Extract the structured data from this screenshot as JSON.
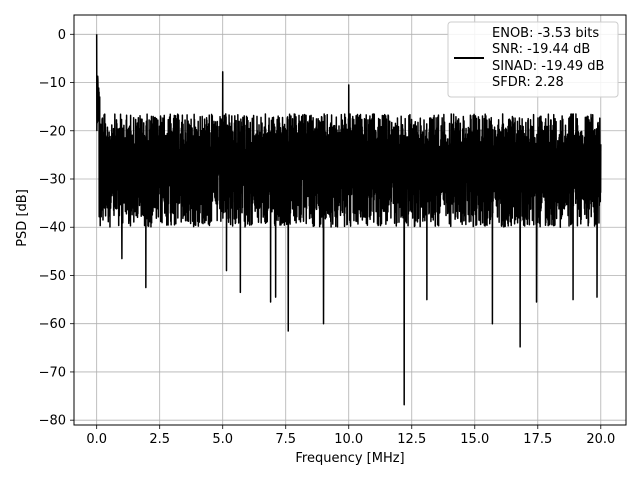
{
  "chart_data": {
    "type": "line",
    "xlabel": "Frequency [MHz]",
    "ylabel": "PSD [dB]",
    "xlim": [
      -0.9,
      21.0
    ],
    "ylim": [
      -81.0,
      4.0
    ],
    "x_ticks": [
      0.0,
      2.5,
      5.0,
      7.5,
      10.0,
      12.5,
      15.0,
      17.5,
      20.0
    ],
    "x_tick_labels": [
      "0.0",
      "2.5",
      "5.0",
      "7.5",
      "10.0",
      "12.5",
      "15.0",
      "17.5",
      "20.0"
    ],
    "y_ticks": [
      0,
      -10,
      -20,
      -30,
      -40,
      -50,
      -60,
      -70,
      -80
    ],
    "y_tick_labels": [
      "0",
      "−10",
      "−20",
      "−30",
      "−40",
      "−50",
      "−60",
      "−70",
      "−80"
    ],
    "grid": true,
    "legend_position": "top-right",
    "legend_entries": [
      "ENOB: -3.53 bits",
      "SNR: -19.44 dB",
      "SINAD: -19.49 dB",
      "SFDR: 2.28"
    ],
    "series": [
      {
        "color": "#000000",
        "envelope": {
          "x_range": [
            0.0,
            20.0
          ],
          "upper_typical": -16.5,
          "lower_typical": -38.0,
          "band_center": -28.0
        },
        "peaks": [
          {
            "x": 0.0,
            "y": 0.0
          },
          {
            "x": 0.05,
            "y": -10.5
          },
          {
            "x": 0.12,
            "y": -13.0
          },
          {
            "x": 5.0,
            "y": -7.8
          },
          {
            "x": 10.0,
            "y": -10.5
          },
          {
            "x": 0.25,
            "y": -38.5
          },
          {
            "x": 1.0,
            "y": -46.5
          },
          {
            "x": 1.95,
            "y": -52.5
          },
          {
            "x": 5.15,
            "y": -49.0
          },
          {
            "x": 5.7,
            "y": -53.5
          },
          {
            "x": 6.9,
            "y": -55.5
          },
          {
            "x": 7.1,
            "y": -54.5
          },
          {
            "x": 7.6,
            "y": -61.5
          },
          {
            "x": 9.0,
            "y": -60.0
          },
          {
            "x": 12.2,
            "y": -76.8
          },
          {
            "x": 13.1,
            "y": -55.0
          },
          {
            "x": 15.7,
            "y": -60.0
          },
          {
            "x": 16.8,
            "y": -64.8
          },
          {
            "x": 17.45,
            "y": -55.5
          },
          {
            "x": 18.9,
            "y": -55.0
          },
          {
            "x": 19.85,
            "y": -54.5
          }
        ]
      }
    ]
  }
}
